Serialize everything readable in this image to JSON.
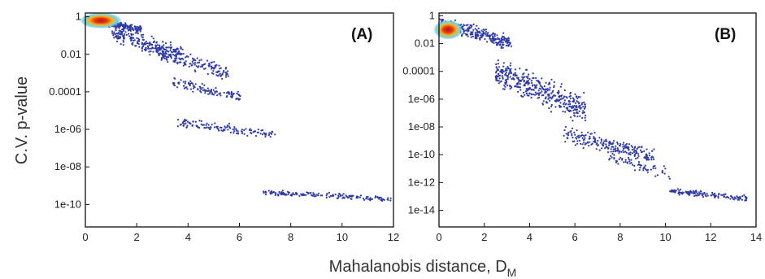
{
  "figure": {
    "ylabel": "C.V. p-value",
    "xlabel_main": "Mahalanobis distance, D",
    "xlabel_sub": "M"
  },
  "colors": {
    "point": "#2d3aa8",
    "density_core": "#d62a1a",
    "density_mid": "#f2b21f",
    "density_outer": "#3fc3e0",
    "frame": "#111111"
  },
  "chart_data": [
    {
      "type": "scatter",
      "panel_label": "(A)",
      "x_ticks": [
        0,
        2,
        4,
        6,
        8,
        10,
        12
      ],
      "xlim": [
        0,
        12
      ],
      "y_scale": "log",
      "y_ticks": [
        {
          "value": 1,
          "label": "1"
        },
        {
          "value": 0.01,
          "label": "0.01"
        },
        {
          "value": 0.0001,
          "label": "0.0001"
        },
        {
          "value": 1e-06,
          "label": "1e-06"
        },
        {
          "value": 1e-08,
          "label": "1e-08"
        },
        {
          "value": 1e-10,
          "label": "1e-10"
        }
      ],
      "ylim_log10": [
        -11.2,
        0.2
      ],
      "density_peak": {
        "x": 0.6,
        "log10_y": -0.2
      },
      "clusters": [
        {
          "x_range": [
            0,
            2.2
          ],
          "log10_y_range": [
            -0.9,
            0
          ],
          "n": 260
        },
        {
          "x_range": [
            1,
            3.8
          ],
          "log10_y_range": [
            -2.6,
            -0.4
          ],
          "n": 240
        },
        {
          "x_range": [
            2.8,
            5.6
          ],
          "log10_y_range": [
            -3.5,
            -1.6
          ],
          "n": 150
        },
        {
          "x_range": [
            3.4,
            6.1
          ],
          "log10_y_range": [
            -4.7,
            -3.2
          ],
          "n": 110
        },
        {
          "x_range": [
            3.6,
            7.4
          ],
          "log10_y_range": [
            -6.6,
            -5.4
          ],
          "n": 130
        },
        {
          "x_range": [
            6.9,
            11.9
          ],
          "log10_y_range": [
            -9.9,
            -9.2
          ],
          "n": 160
        }
      ]
    },
    {
      "type": "scatter",
      "panel_label": "(B)",
      "x_ticks": [
        0,
        2,
        4,
        6,
        8,
        10,
        12,
        14
      ],
      "xlim": [
        0,
        14
      ],
      "y_scale": "log",
      "y_ticks": [
        {
          "value": 1,
          "label": "1"
        },
        {
          "value": 0.01,
          "label": "0.01"
        },
        {
          "value": 0.0001,
          "label": "0.0001"
        },
        {
          "value": 1e-06,
          "label": "1e-06"
        },
        {
          "value": 1e-08,
          "label": "1e-08"
        },
        {
          "value": 1e-10,
          "label": "1e-10"
        },
        {
          "value": 1e-12,
          "label": "1e-12"
        },
        {
          "value": 1e-14,
          "label": "1e-14"
        }
      ],
      "ylim_log10": [
        -15.2,
        0.2
      ],
      "density_peak": {
        "x": 0.4,
        "log10_y": -1.0
      },
      "trend": [
        [
          0,
          -0.6
        ],
        [
          2,
          -2.0
        ],
        [
          4,
          -5.0
        ],
        [
          6,
          -7.6
        ],
        [
          8,
          -10.2
        ],
        [
          10,
          -12.0
        ],
        [
          12,
          -13.0
        ],
        [
          13.5,
          -13.4
        ]
      ],
      "clusters": [
        {
          "x_range": [
            0,
            3.2
          ],
          "log10_y_range": [
            -2.6,
            0
          ],
          "n": 280
        },
        {
          "x_range": [
            2.5,
            6.5
          ],
          "log10_y_range": [
            -8.0,
            -3.0
          ],
          "n": 420
        },
        {
          "x_range": [
            5.5,
            9.5
          ],
          "log10_y_range": [
            -10.8,
            -8.0
          ],
          "n": 220
        },
        {
          "x_range": [
            7.5,
            10.2
          ],
          "log10_y_range": [
            -12.0,
            -9.8
          ],
          "n": 60
        },
        {
          "x_range": [
            10.2,
            13.6
          ],
          "log10_y_range": [
            -13.4,
            -12.4
          ],
          "n": 130
        }
      ]
    }
  ]
}
